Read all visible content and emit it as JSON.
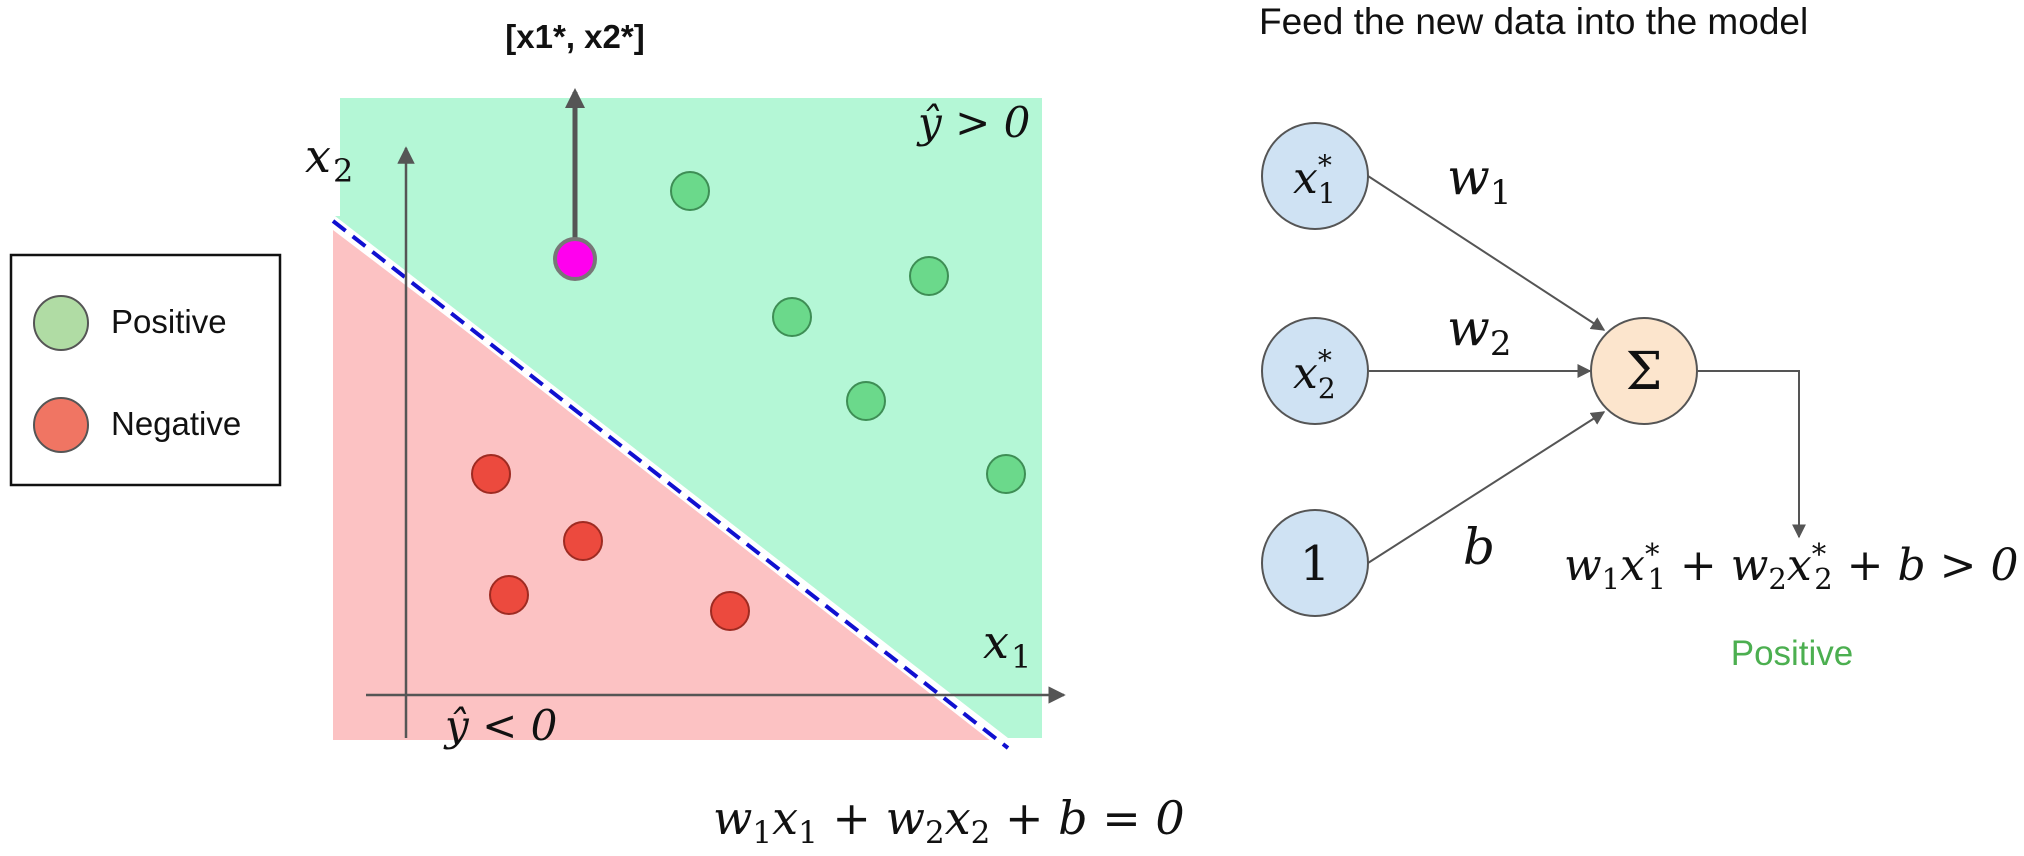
{
  "new_point_label": "[x1*, x2*]",
  "right_title": "Feed the new data into the model",
  "legend": {
    "positive": "Positive",
    "negative": "Negative"
  },
  "plot": {
    "x_axis_label_var": "x",
    "x_axis_label_sub": "1",
    "y_axis_label_var": "x",
    "y_axis_label_sub": "2",
    "region_positive_label": "ŷ > 0",
    "region_negative_label": "ŷ < 0",
    "boundary_equation": {
      "w1": "w",
      "w1_sub": "1",
      "x1": "x",
      "x1_sub": "1",
      "plus1": " + ",
      "w2": "w",
      "w2_sub": "2",
      "x2": "x",
      "x2_sub": "2",
      "rest": " + b = 0"
    }
  },
  "network": {
    "input1_var": "x",
    "input1_sup": "*",
    "input1_sub": "1",
    "input2_var": "x",
    "input2_sup": "*",
    "input2_sub": "2",
    "bias_input": "1",
    "weight1_var": "w",
    "weight1_sub": "1",
    "weight2_var": "w",
    "weight2_sub": "2",
    "bias_weight": "b",
    "sum_symbol": "Σ",
    "output_equation": {
      "w1": "w",
      "w1_sub": "1",
      "x1": "x",
      "x1_sup": "*",
      "x1_sub": "1",
      "plus1": " + ",
      "w2": "w",
      "w2_sub": "2",
      "x2": "x",
      "x2_sup": "*",
      "x2_sub": "2",
      "rest": " + b > 0"
    },
    "result": "Positive"
  },
  "colors": {
    "positive_region": "#b4f7d6",
    "negative_region": "#fcc2c3",
    "positive_point": "#6bd98b",
    "negative_point": "#ec4a3e",
    "new_point": "#ff00ee",
    "boundary": "#1010d0",
    "input_node": "#cfe2f3",
    "sum_node": "#fce5cd",
    "result_text": "#4caf50",
    "legend_positive": "#b0dca4",
    "legend_negative": "#f07563"
  }
}
